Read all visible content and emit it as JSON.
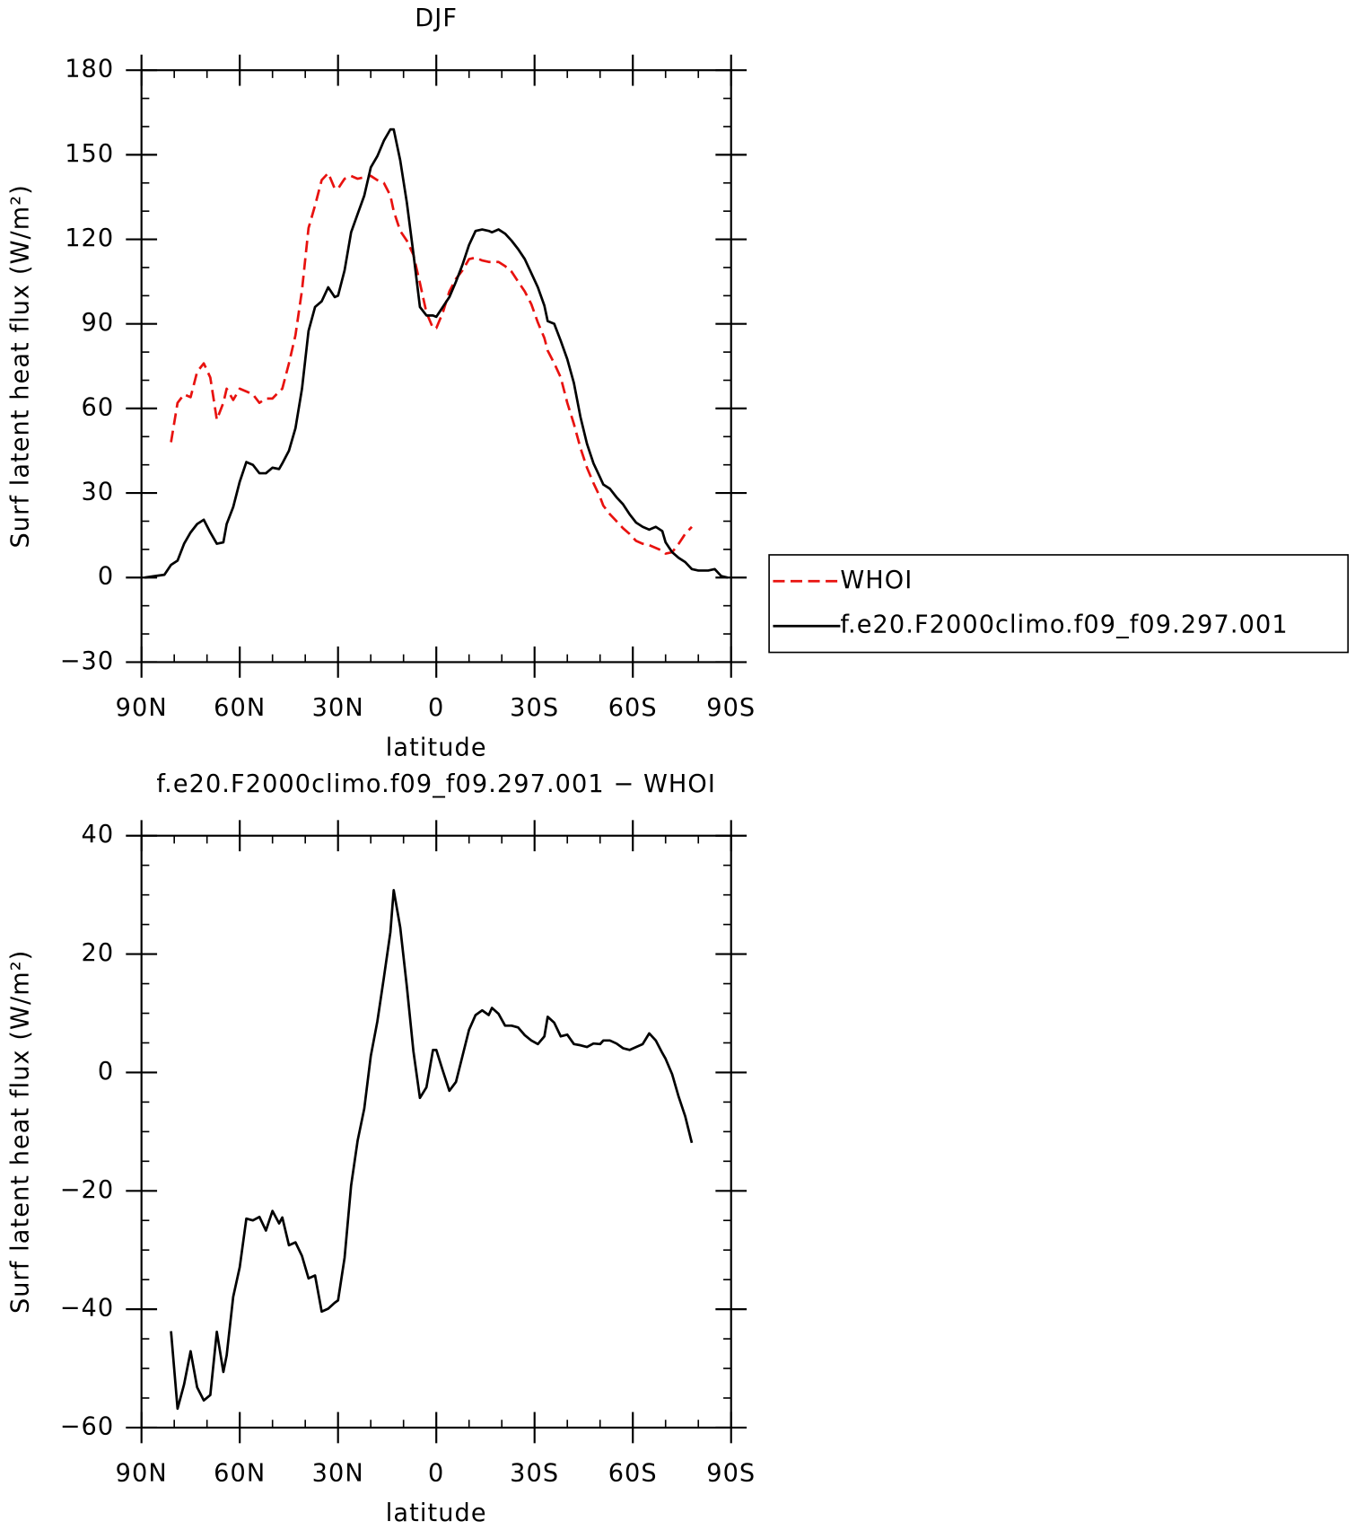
{
  "chart_data": [
    {
      "type": "line",
      "title": "DJF",
      "xlabel": "latitude",
      "ylabel": "Surf latent heat flux (W/m²)",
      "xlim": [
        90,
        -90
      ],
      "ylim": [
        -30,
        180
      ],
      "xticks": [
        {
          "value": 90,
          "label": "90N"
        },
        {
          "value": 60,
          "label": "60N"
        },
        {
          "value": 30,
          "label": "30N"
        },
        0,
        {
          "value": -30,
          "label": "30S"
        },
        {
          "value": -60,
          "label": "60S"
        },
        {
          "value": -90,
          "label": "90S"
        }
      ],
      "yticks": [
        {
          "value": -30,
          "label": "−30"
        },
        0,
        30,
        60,
        90,
        120,
        150,
        180
      ],
      "legend": "right",
      "x": [
        89,
        86,
        83,
        81,
        79,
        77,
        75,
        73,
        71,
        69,
        67,
        65,
        64,
        62,
        60,
        58,
        56,
        54,
        52,
        50,
        48,
        47,
        45,
        43,
        41,
        39,
        37,
        35,
        33,
        31,
        30,
        28,
        26,
        24,
        22,
        20,
        18,
        16,
        14,
        13,
        11,
        9,
        7,
        5,
        3,
        1,
        0,
        -2,
        -4,
        -6,
        -8,
        -10,
        -12,
        -14,
        -16,
        -17,
        -19,
        -21,
        -23,
        -25,
        -27,
        -29,
        -31,
        -33,
        -34,
        -36,
        -38,
        -40,
        -42,
        -44,
        -46,
        -48,
        -50,
        -51,
        -53,
        -55,
        -57,
        -59,
        -61,
        -63,
        -65,
        -67,
        -69,
        -70,
        -72,
        -74,
        -76,
        -78,
        -80,
        -82,
        -83,
        -85,
        -87,
        -89
      ],
      "series": [
        {
          "name": "WHOI",
          "color": "#e8120f",
          "dashed": true,
          "values": [
            null,
            null,
            null,
            48,
            62,
            65,
            64,
            73,
            76,
            71,
            56,
            62,
            67,
            63,
            67,
            66,
            65,
            62,
            63.5,
            63.5,
            66,
            67,
            76,
            86,
            102,
            124,
            132,
            141,
            143.5,
            138,
            138,
            141.5,
            142.5,
            141.5,
            142,
            142.5,
            141,
            140,
            135.5,
            130,
            123,
            119.5,
            114.5,
            104.5,
            94,
            88.5,
            88.5,
            94,
            101.5,
            106,
            109,
            113,
            113.5,
            112.5,
            112,
            112,
            112,
            110.5,
            108.5,
            105,
            101.5,
            97,
            90.5,
            85,
            80.5,
            76,
            71,
            62,
            54.5,
            46,
            39,
            33.5,
            28.5,
            25.5,
            22.5,
            20,
            17.5,
            15.5,
            13,
            12,
            11.5,
            10.5,
            9.5,
            8.5,
            9,
            12,
            15.5,
            18,
            null,
            null,
            null,
            null,
            null,
            null
          ]
        },
        {
          "name": "f.e20.F2000climo.f09_f09.297.001",
          "color": "#000000",
          "dashed": false,
          "values": [
            0,
            0.5,
            1,
            4.5,
            6,
            12,
            16,
            19,
            20.5,
            16,
            12,
            12.5,
            19,
            25,
            34,
            41,
            40,
            37,
            37,
            39,
            38.5,
            40.5,
            45,
            53,
            67,
            87.5,
            96,
            98,
            103,
            99.5,
            100,
            109,
            122.5,
            129,
            135.5,
            145.5,
            149.5,
            155,
            159,
            159,
            148,
            133,
            115,
            96,
            93,
            93,
            92.5,
            96,
            99.5,
            105,
            111,
            118,
            123,
            123.5,
            123,
            122.5,
            123.5,
            122,
            119.5,
            116.5,
            113,
            108,
            103,
            96.5,
            91,
            90,
            84,
            77.5,
            69,
            57,
            47.5,
            40.5,
            35.5,
            33,
            31.5,
            28.5,
            26,
            22.5,
            19.5,
            18,
            17,
            18,
            16.5,
            12.5,
            9,
            7,
            5.5,
            3,
            2.5,
            2.5,
            2.5,
            3,
            0.5,
            0
          ]
        }
      ]
    },
    {
      "type": "line",
      "title": "f.e20.F2000climo.f09_f09.297.001 − WHOI",
      "xlabel": "latitude",
      "ylabel": "Surf latent heat flux (W/m²)",
      "xlim": [
        90,
        -90
      ],
      "ylim": [
        -60,
        40
      ],
      "xticks": [
        {
          "value": 90,
          "label": "90N"
        },
        {
          "value": 60,
          "label": "60N"
        },
        {
          "value": 30,
          "label": "30N"
        },
        0,
        {
          "value": -30,
          "label": "30S"
        },
        {
          "value": -60,
          "label": "60S"
        },
        {
          "value": -90,
          "label": "90S"
        }
      ],
      "yticks": [
        {
          "value": -60,
          "label": "−60"
        },
        {
          "value": -40,
          "label": "−40"
        },
        {
          "value": -20,
          "label": "−20"
        },
        0,
        20,
        40
      ],
      "x": [
        81,
        79,
        77,
        75,
        73,
        71,
        69,
        67,
        65,
        64,
        62,
        60,
        58,
        56,
        54,
        52,
        50,
        48,
        47,
        45,
        43,
        41,
        39,
        37,
        35,
        33,
        31,
        30,
        28,
        26,
        24,
        22,
        20,
        18,
        16,
        14,
        13,
        11,
        9,
        7,
        5,
        3,
        1,
        0,
        -2,
        -4,
        -6,
        -8,
        -10,
        -12,
        -14,
        -16,
        -17,
        -19,
        -21,
        -23,
        -25,
        -27,
        -29,
        -31,
        -33,
        -34,
        -36,
        -38,
        -40,
        -42,
        -44,
        -46,
        -48,
        -50,
        -51,
        -53,
        -55,
        -57,
        -59,
        -61,
        -63,
        -65,
        -67,
        -69,
        -70,
        -72,
        -74,
        -76,
        -78
      ],
      "series": [
        {
          "color": "#000000",
          "dashed": false,
          "values": [
            -43.7,
            -56.8,
            -52.7,
            -47.1,
            -53.2,
            -55.4,
            -54.5,
            -43.8,
            -50.6,
            -47.8,
            -37.9,
            -32.9,
            -24.7,
            -25,
            -24.4,
            -26.7,
            -23.4,
            -25.5,
            -24.5,
            -29.2,
            -28.7,
            -31,
            -34.8,
            -34.3,
            -40.4,
            -39.9,
            -38.9,
            -38.5,
            -31.3,
            -19.1,
            -11.5,
            -6.1,
            2.8,
            8.6,
            16,
            23.7,
            30.8,
            24.5,
            14.5,
            3.6,
            -4.3,
            -2.5,
            3.8,
            3.8,
            0.3,
            -3.1,
            -1.6,
            2.8,
            7.2,
            9.7,
            10.5,
            9.7,
            10.9,
            9.9,
            7.9,
            7.9,
            7.6,
            6.3,
            5.4,
            4.8,
            6.1,
            9.4,
            8.4,
            6.1,
            6.4,
            4.8,
            4.6,
            4.3,
            4.9,
            4.8,
            5.4,
            5.4,
            4.9,
            4.1,
            3.8,
            4.3,
            4.8,
            6.6,
            5.4,
            3.3,
            2.3,
            -0.3,
            -4.1,
            -7.4,
            -11.9
          ]
        }
      ]
    }
  ]
}
